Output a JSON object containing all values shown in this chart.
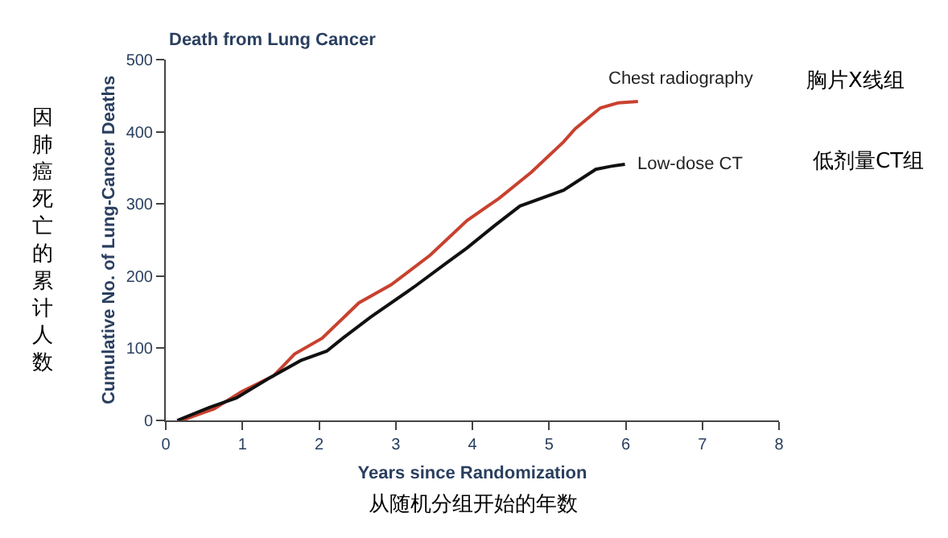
{
  "chart_data": {
    "type": "line",
    "title": "Death from Lung Cancer",
    "xlabel": "Years since Randomization",
    "ylabel": "Cumulative No. of Lung-Cancer Deaths",
    "xlim": [
      0,
      8
    ],
    "xticks": [
      0,
      1,
      2,
      3,
      4,
      5,
      6,
      7,
      8
    ],
    "ylim": [
      0,
      500
    ],
    "yticks": [
      0,
      100,
      200,
      300,
      400,
      500
    ],
    "legend": false,
    "marker": "none",
    "line_style": "solid",
    "series": [
      {
        "name": "Chest radiography",
        "color": "#c8412f",
        "x": [
          0.21,
          0.63,
          0.99,
          1.41,
          1.68,
          2.04,
          2.52,
          2.94,
          3.45,
          3.93,
          4.35,
          4.77,
          5.19,
          5.34,
          5.67,
          5.9,
          6.16
        ],
        "values": [
          0,
          16,
          40,
          62,
          92,
          114,
          163,
          188,
          229,
          277,
          308,
          344,
          386,
          404,
          433,
          440,
          442
        ]
      },
      {
        "name": "Low-dose CT",
        "color": "#111111",
        "x": [
          0.15,
          0.57,
          0.92,
          1.34,
          1.76,
          2.1,
          2.31,
          2.67,
          3.24,
          3.66,
          3.93,
          4.29,
          4.62,
          5.19,
          5.61,
          5.8,
          5.99
        ],
        "values": [
          0,
          18,
          31,
          58,
          83,
          96,
          114,
          143,
          185,
          218,
          239,
          270,
          297,
          319,
          348,
          352,
          355
        ]
      }
    ],
    "annotations": [
      "因肺癌死亡的累计人数",
      "从随机分组开始的年数",
      "胸片X线组",
      "低剂量CT组"
    ]
  }
}
